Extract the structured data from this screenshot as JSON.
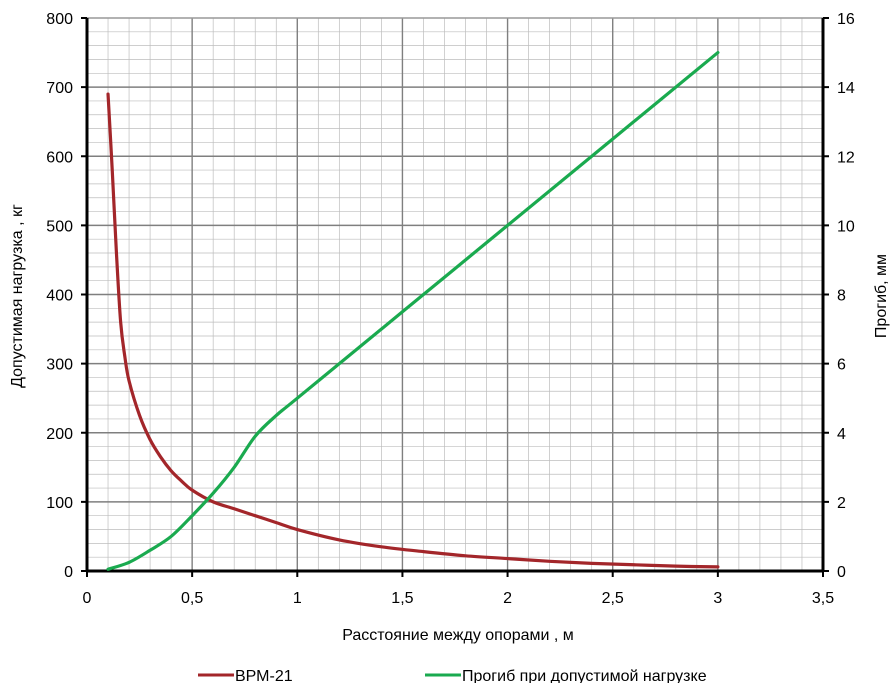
{
  "chart_data": {
    "type": "line",
    "xlabel": "Расстояние между опорами , м",
    "ylabel": "Допустимая нагрузка ,  кг",
    "y2label": "Прогиб, мм",
    "xlim": [
      0,
      3.5
    ],
    "ylim": [
      0,
      800
    ],
    "y2lim": [
      0,
      16
    ],
    "xticks": [
      0,
      0.5,
      1,
      1.5,
      2,
      2.5,
      3,
      3.5
    ],
    "xtick_labels": [
      "0",
      "0,5",
      "1",
      "1,5",
      "2",
      "2,5",
      "3",
      "3,5"
    ],
    "yticks": [
      0,
      100,
      200,
      300,
      400,
      500,
      600,
      700,
      800
    ],
    "ytick_labels": [
      "0",
      "100",
      "200",
      "300",
      "400",
      "500",
      "600",
      "700",
      "800"
    ],
    "y2ticks": [
      0,
      2,
      4,
      6,
      8,
      10,
      12,
      14,
      16
    ],
    "y2tick_labels": [
      "0",
      "2",
      "4",
      "6",
      "8",
      "10",
      "12",
      "14",
      "16"
    ],
    "grid": true,
    "legend_position": "bottom",
    "series": [
      {
        "name": "ВРМ-21",
        "axis": "left",
        "color": "#a3262a",
        "x": [
          0.1,
          0.12,
          0.14,
          0.16,
          0.18,
          0.2,
          0.25,
          0.3,
          0.35,
          0.4,
          0.45,
          0.5,
          0.6,
          0.7,
          0.8,
          0.9,
          1.0,
          1.2,
          1.4,
          1.6,
          1.8,
          2.0,
          2.2,
          2.4,
          2.6,
          2.8,
          3.0
        ],
        "y": [
          690,
          580,
          460,
          360,
          310,
          275,
          225,
          190,
          165,
          145,
          130,
          117,
          100,
          90,
          80,
          70,
          60,
          45,
          35,
          28,
          22,
          18,
          14,
          11,
          9,
          7,
          6
        ]
      },
      {
        "name": "Прогиб при допустимой нагрузке",
        "axis": "right",
        "color": "#1aaa4f",
        "x": [
          0.1,
          0.2,
          0.3,
          0.4,
          0.5,
          0.6,
          0.7,
          0.8,
          0.9,
          1.0,
          1.5,
          2.0,
          2.5,
          3.0
        ],
        "y": [
          0.05,
          0.25,
          0.6,
          1.0,
          1.6,
          2.25,
          3.0,
          3.9,
          4.5,
          5.0,
          7.5,
          10.0,
          12.5,
          15.0
        ]
      }
    ]
  }
}
